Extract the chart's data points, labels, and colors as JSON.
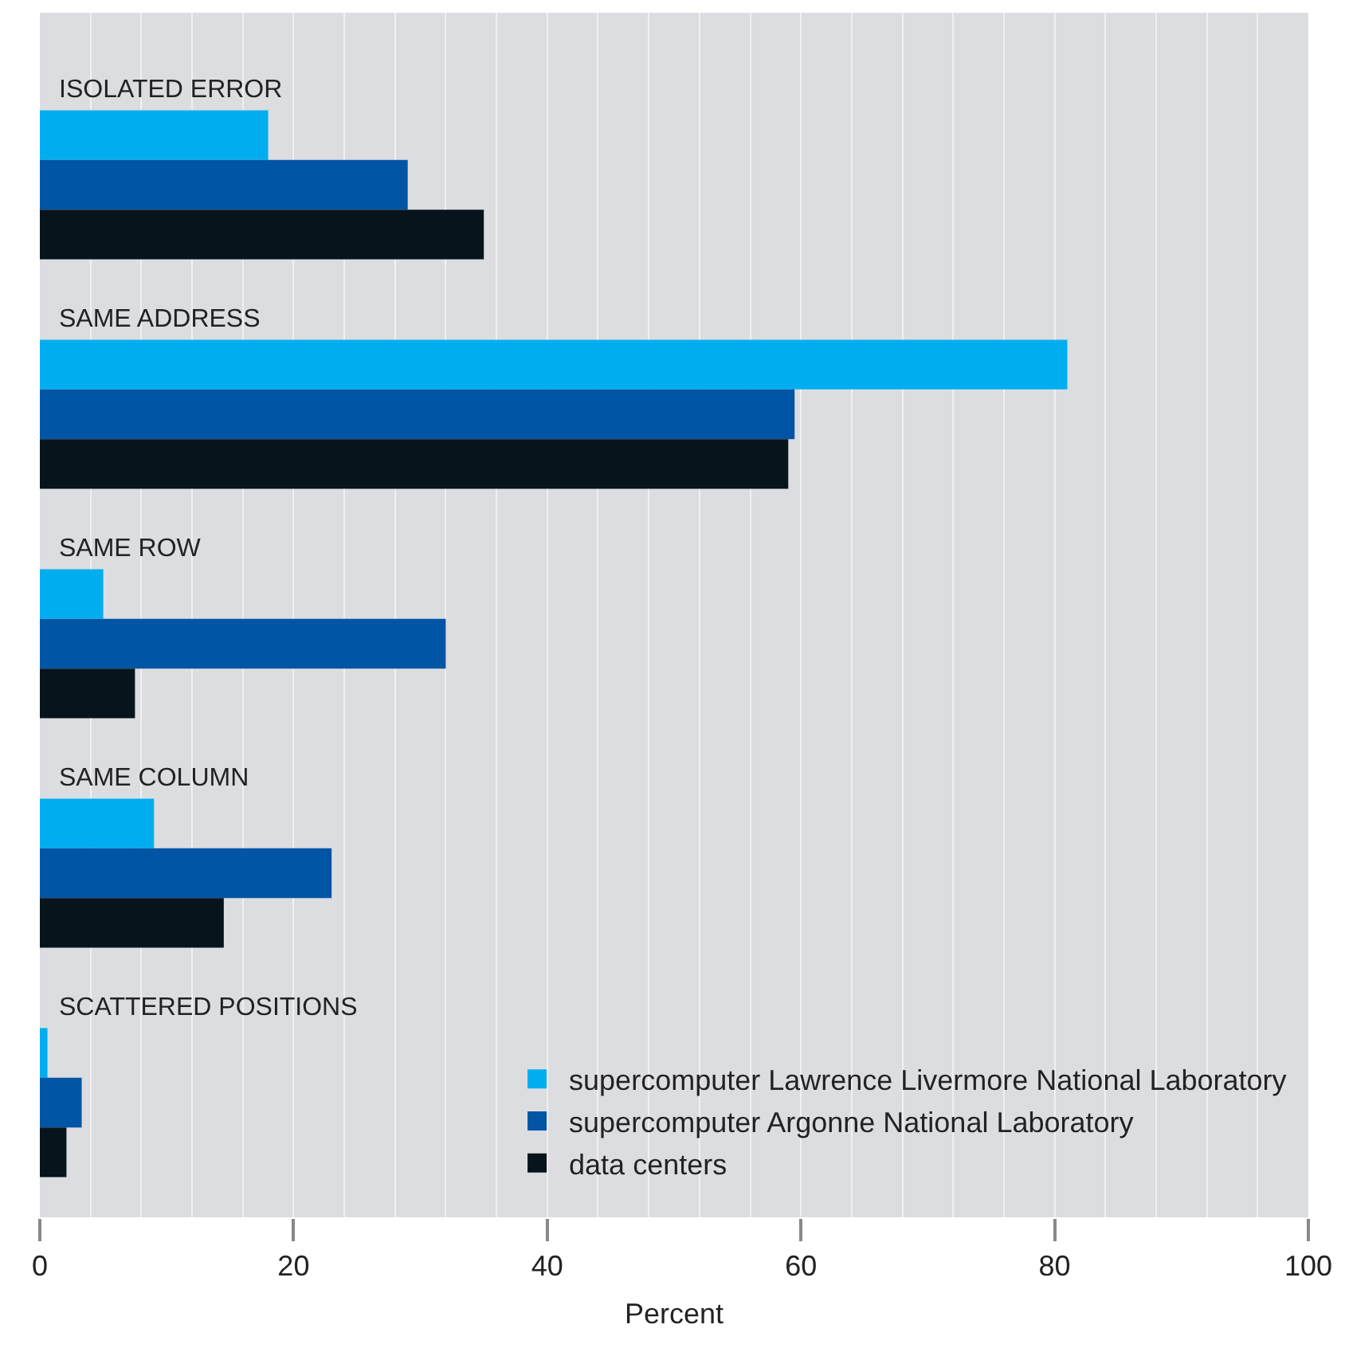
{
  "chart_data": {
    "type": "bar",
    "orientation": "horizontal",
    "xlabel": "Percent",
    "categories": [
      "ISOLATED ERROR",
      "SAME ADDRESS",
      "SAME ROW",
      "SAME COLUMN",
      "SCATTERED POSITIONS"
    ],
    "series": [
      {
        "name": "supercomputer Lawrence Livermore National Laboratory",
        "color": "#00aeef",
        "values": [
          18,
          81,
          5,
          9,
          0.6
        ]
      },
      {
        "name": "supercomputer Argonne National Laboratory",
        "color": "#0055a5",
        "values": [
          29,
          59.5,
          32,
          23,
          3.3
        ]
      },
      {
        "name": "data centers",
        "color": "#07141c",
        "values": [
          35,
          59,
          7.5,
          14.5,
          2.1
        ]
      }
    ],
    "xlim": [
      0,
      100
    ],
    "xticks": [
      0,
      20,
      40,
      60,
      80,
      100
    ],
    "grid": "x",
    "legend": "bottom right"
  }
}
